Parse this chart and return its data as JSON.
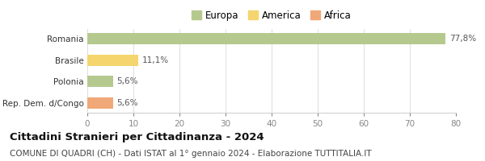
{
  "title": "Cittadini Stranieri per Cittadinanza - 2024",
  "subtitle": "COMUNE DI QUADRI (CH) - Dati ISTAT al 1° gennaio 2024 - Elaborazione TUTTITALIA.IT",
  "categories": [
    "Romania",
    "Brasile",
    "Polonia",
    "Rep. Dem. d/Congo"
  ],
  "values": [
    77.8,
    11.1,
    5.6,
    5.6
  ],
  "labels": [
    "77,8%",
    "11,1%",
    "5,6%",
    "5,6%"
  ],
  "colors": [
    "#b5c98e",
    "#f5d56e",
    "#b5c98e",
    "#f0a878"
  ],
  "legend_labels": [
    "Europa",
    "America",
    "Africa"
  ],
  "legend_colors": [
    "#b5c98e",
    "#f5d56e",
    "#f0a878"
  ],
  "xlim": [
    0,
    80
  ],
  "xticks": [
    0,
    10,
    20,
    30,
    40,
    50,
    60,
    70,
    80
  ],
  "background_color": "#ffffff",
  "bar_height": 0.52,
  "title_fontsize": 9.5,
  "subtitle_fontsize": 7.5,
  "label_fontsize": 7.5,
  "tick_fontsize": 7.5,
  "legend_fontsize": 8.5,
  "ytick_fontsize": 7.5
}
